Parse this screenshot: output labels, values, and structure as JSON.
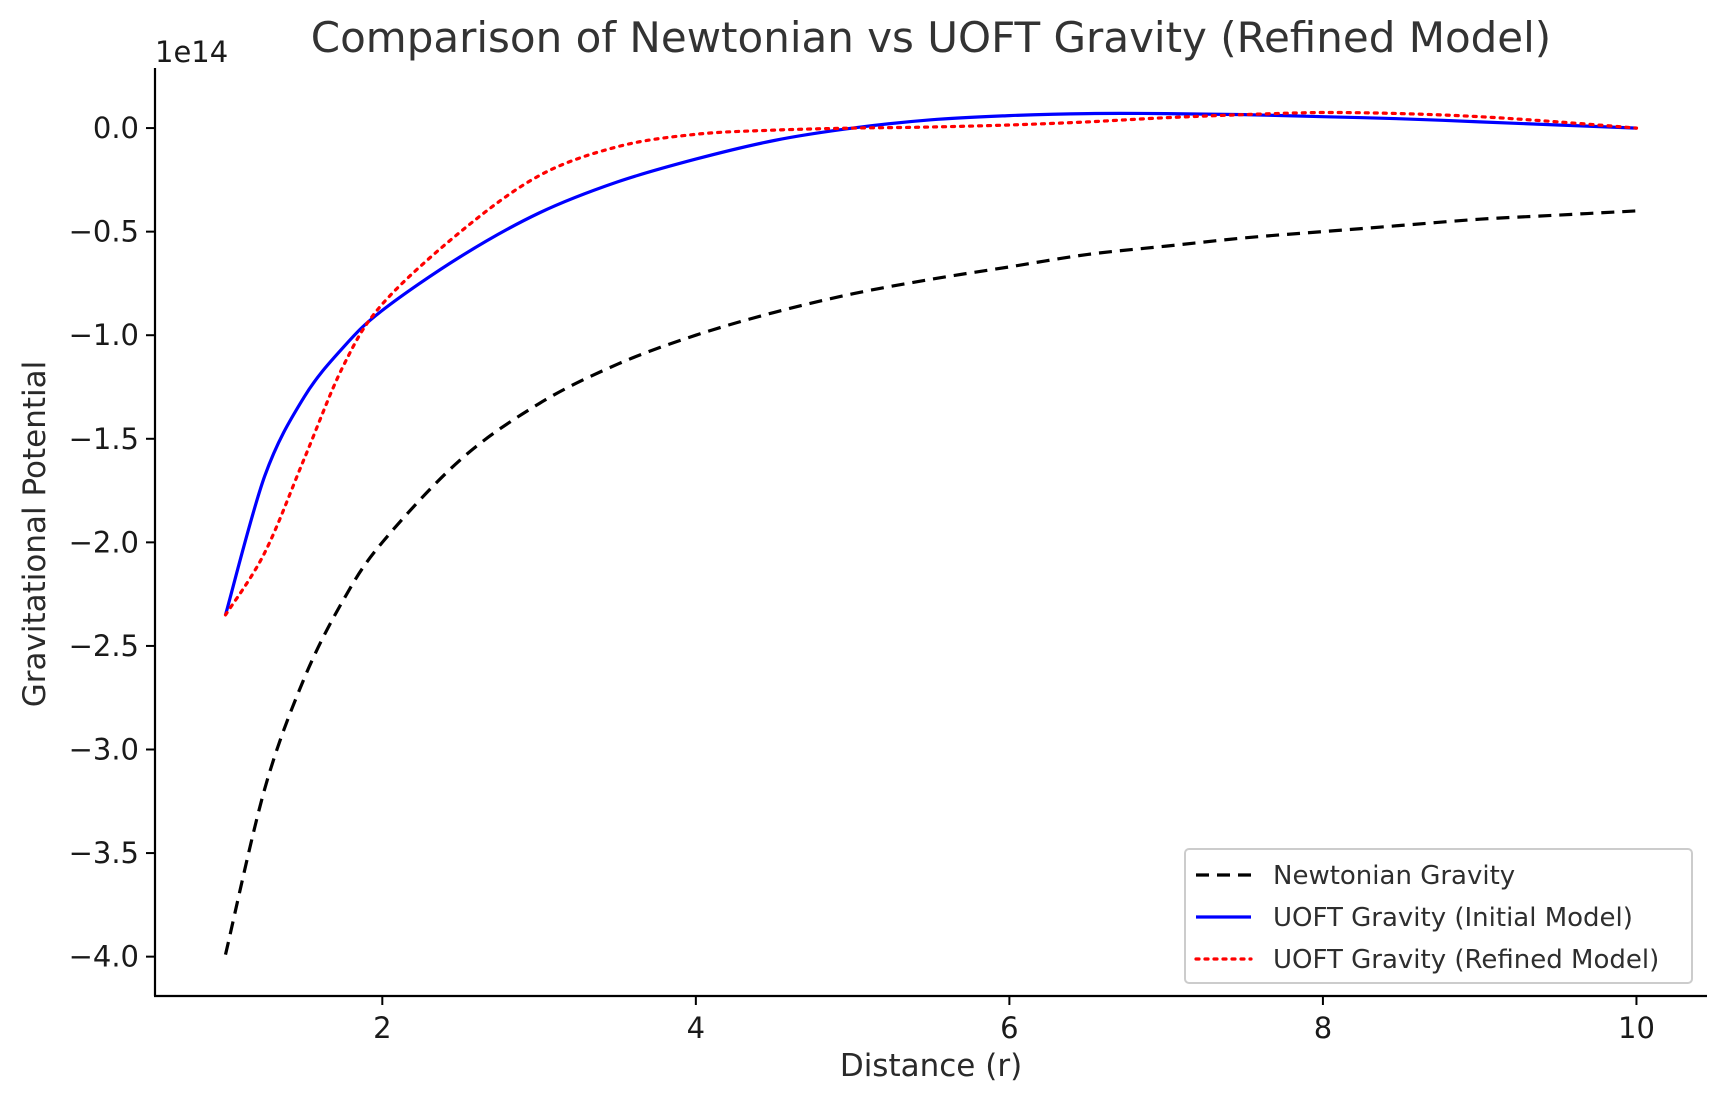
{
  "chart_data": {
    "type": "line",
    "title": "Comparison of Newtonian vs UOFT Gravity (Refined Model)",
    "xlabel": "Distance (r)",
    "ylabel": "Gravitational Potential",
    "y_offset_label": "1e14",
    "xlim": [
      0.55,
      10.45
    ],
    "ylim": [
      -4.19,
      0.29
    ],
    "x_ticks": [
      2,
      4,
      6,
      8,
      10
    ],
    "x_tick_labels": [
      "2",
      "4",
      "6",
      "8",
      "10"
    ],
    "y_ticks": [
      0.0,
      -0.5,
      -1.0,
      -1.5,
      -2.0,
      -2.5,
      -3.0,
      -3.5,
      -4.0
    ],
    "y_tick_labels": [
      "0.0",
      "−0.5",
      "−1.0",
      "−1.5",
      "−2.0",
      "−2.5",
      "−3.0",
      "−3.5",
      "−4.0"
    ],
    "grid": false,
    "legend_position": "lower-right",
    "x": [
      1.0,
      1.25,
      1.5,
      1.75,
      2.0,
      2.5,
      3.0,
      3.5,
      4.0,
      4.5,
      5.0,
      5.5,
      6.0,
      6.5,
      7.0,
      7.5,
      8.0,
      8.5,
      9.0,
      9.5,
      10.0
    ],
    "series": [
      {
        "name": "Newtonian Gravity",
        "color": "#000000",
        "dash": "dashed",
        "values": [
          -3.99,
          -3.19,
          -2.66,
          -2.28,
          -2.0,
          -1.6,
          -1.33,
          -1.14,
          -1.0,
          -0.89,
          -0.8,
          -0.73,
          -0.67,
          -0.61,
          -0.57,
          -0.53,
          -0.5,
          -0.47,
          -0.44,
          -0.42,
          -0.4
        ]
      },
      {
        "name": "UOFT Gravity (Initial Model)",
        "color": "#0000ff",
        "dash": "solid",
        "values": [
          -2.35,
          -1.68,
          -1.3,
          -1.06,
          -0.88,
          -0.62,
          -0.41,
          -0.26,
          -0.15,
          -0.06,
          0.0,
          0.04,
          0.06,
          0.07,
          0.07,
          0.065,
          0.055,
          0.045,
          0.03,
          0.015,
          0.0
        ]
      },
      {
        "name": "UOFT Gravity (Refined Model)",
        "color": "#ff0000",
        "dash": "dotted",
        "values": [
          -2.35,
          -2.05,
          -1.6,
          -1.15,
          -0.85,
          -0.5,
          -0.23,
          -0.09,
          -0.03,
          -0.01,
          0.0,
          0.005,
          0.015,
          0.03,
          0.05,
          0.065,
          0.075,
          0.07,
          0.055,
          0.03,
          0.0
        ]
      }
    ]
  }
}
